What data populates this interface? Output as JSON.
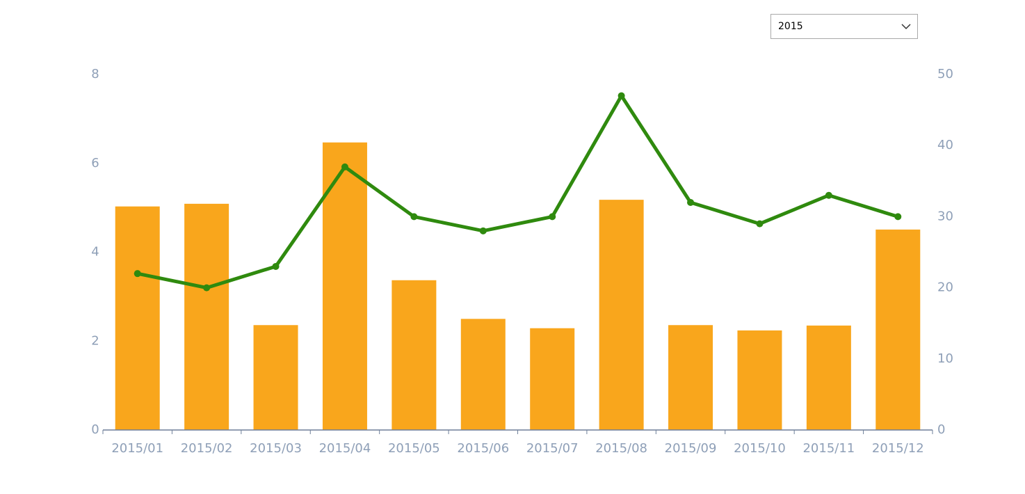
{
  "controls": {
    "year_select": "2015"
  },
  "chart_data": {
    "type": "bar",
    "categories": [
      "2015/01",
      "2015/02",
      "2015/03",
      "2015/04",
      "2015/05",
      "2015/06",
      "2015/07",
      "2015/08",
      "2015/09",
      "2015/10",
      "2015/11",
      "2015/12"
    ],
    "series": [
      {
        "type": "bar",
        "color": "#f9a61c",
        "values": [
          5.03,
          5.09,
          2.36,
          6.47,
          3.37,
          2.5,
          2.29,
          5.18,
          2.36,
          2.24,
          2.35,
          4.51
        ]
      },
      {
        "type": "line",
        "axis": "y2",
        "color": "#2f8a0e",
        "values": [
          22,
          20,
          23,
          37,
          30,
          28,
          30,
          47,
          32,
          29,
          33,
          30
        ]
      }
    ],
    "ylim": [
      0,
      8
    ],
    "yticks": [
      0,
      2,
      4,
      6,
      8
    ],
    "y2lim": [
      0,
      50
    ],
    "y2ticks": [
      0,
      10,
      20,
      30,
      40,
      50
    ],
    "grid": false
  }
}
